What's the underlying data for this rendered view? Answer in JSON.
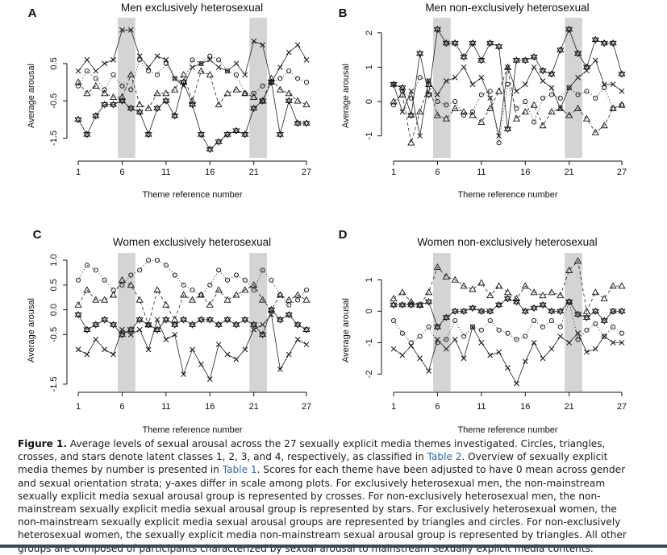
{
  "axis_x_label": "Theme reference number",
  "axis_y_label": "Average arousal",
  "x_ticks": [
    1,
    6,
    11,
    16,
    21,
    27
  ],
  "highlight_themes": [
    6,
    21
  ],
  "chart_data": [
    {
      "panel": "A",
      "type": "scatter",
      "title": "Men exclusively heterosexual",
      "xlabel": "Theme reference number",
      "ylabel": "Average arousal",
      "xlim": [
        1,
        27
      ],
      "ylim": [
        -1.9,
        1.6
      ],
      "yticks": [
        -1.5,
        -0.5,
        0.5
      ],
      "ytick_labels": [
        "-1.5",
        "-0.5",
        "0.5"
      ],
      "x": [
        1,
        2,
        3,
        4,
        5,
        6,
        7,
        8,
        9,
        10,
        11,
        12,
        13,
        14,
        15,
        16,
        17,
        18,
        19,
        20,
        21,
        22,
        23,
        24,
        25,
        26,
        27
      ],
      "series": [
        {
          "marker": "circle",
          "line": "dotted",
          "values": [
            -0.1,
            0.3,
            0.1,
            -0.2,
            0.2,
            -0.1,
            -0.2,
            0.6,
            0.3,
            0.2,
            0.5,
            0.1,
            0.0,
            0.6,
            0.5,
            0.7,
            0.6,
            0.3,
            0.2,
            -0.3,
            -0.3,
            -0.1,
            0.0,
            0.1,
            0.3,
            0.1,
            0.0
          ]
        },
        {
          "marker": "triangle",
          "line": "dashed",
          "values": [
            0.0,
            -0.3,
            -0.1,
            -0.3,
            -0.4,
            -0.4,
            0.2,
            -0.6,
            -0.7,
            -0.3,
            -0.3,
            -0.2,
            0.2,
            -0.5,
            0.3,
            0.2,
            -0.6,
            -0.3,
            -0.2,
            -0.3,
            -0.4,
            -0.5,
            0.1,
            -0.2,
            -0.3,
            -0.5,
            -0.6
          ]
        },
        {
          "marker": "cross",
          "line": "solid",
          "values": [
            0.3,
            0.6,
            0.3,
            0.5,
            0.6,
            1.4,
            1.4,
            0.7,
            0.4,
            0.7,
            0.6,
            0.1,
            -0.1,
            0.4,
            0.5,
            0.6,
            0.4,
            0.3,
            0.5,
            0.2,
            1.1,
            1.0,
            0.0,
            0.4,
            0.8,
            1.0,
            0.6
          ]
        },
        {
          "marker": "star",
          "line": "solid",
          "values": [
            -1.0,
            -1.4,
            -0.9,
            -0.6,
            -0.6,
            -0.5,
            -0.7,
            -0.8,
            -1.4,
            -0.7,
            -0.5,
            -0.9,
            0.0,
            -0.6,
            -1.4,
            -1.8,
            -1.6,
            -1.4,
            -1.3,
            -1.4,
            -0.7,
            -0.5,
            0.0,
            -1.4,
            -0.5,
            -1.1,
            -1.1
          ]
        }
      ]
    },
    {
      "panel": "B",
      "type": "scatter",
      "title": "Men non-exclusively heterosexual",
      "xlabel": "Theme reference number",
      "ylabel": "Average arousal",
      "xlim": [
        1,
        27
      ],
      "ylim": [
        -1.5,
        2.3
      ],
      "yticks": [
        -1,
        0,
        1,
        2
      ],
      "ytick_labels": [
        "-1",
        "0",
        "1",
        "2"
      ],
      "x": [
        1,
        2,
        3,
        4,
        5,
        6,
        7,
        8,
        9,
        10,
        11,
        12,
        13,
        14,
        15,
        16,
        17,
        18,
        19,
        20,
        21,
        22,
        23,
        24,
        25,
        26,
        27
      ],
      "series": [
        {
          "marker": "circle",
          "line": "dotted",
          "values": [
            -0.1,
            0.3,
            0.1,
            0.7,
            0.6,
            0.0,
            -0.1,
            0.0,
            -0.4,
            -0.3,
            0.2,
            0.3,
            -1.2,
            0.5,
            -0.2,
            0.0,
            -0.6,
            0.1,
            0.2,
            0.1,
            0.4,
            0.2,
            0.3,
            0.1,
            0.4,
            -0.2,
            -0.1
          ]
        },
        {
          "marker": "triangle",
          "line": "dashed",
          "values": [
            0.0,
            0.2,
            -1.2,
            -0.3,
            0.5,
            -0.4,
            -0.5,
            -0.2,
            -0.3,
            -0.4,
            -0.6,
            -0.2,
            0.3,
            1.0,
            -0.5,
            -0.3,
            -0.1,
            -0.7,
            -0.3,
            -0.2,
            -0.4,
            -0.2,
            -0.5,
            -0.9,
            -0.7,
            -0.2,
            -0.1
          ]
        },
        {
          "marker": "cross",
          "line": "solid",
          "values": [
            0.5,
            -0.3,
            0.3,
            -1.0,
            0.6,
            0.2,
            0.6,
            0.7,
            1.0,
            0.5,
            0.7,
            0.1,
            -1.0,
            1.0,
            0.3,
            0.5,
            1.0,
            0.6,
            0.4,
            -0.2,
            0.4,
            0.7,
            0.9,
            1.2,
            0.5,
            0.5,
            0.3
          ]
        },
        {
          "marker": "star",
          "line": "solid",
          "values": [
            0.5,
            0.4,
            -0.4,
            1.4,
            0.2,
            2.1,
            1.7,
            1.7,
            1.3,
            1.7,
            1.2,
            1.7,
            1.6,
            -0.8,
            1.2,
            1.2,
            1.3,
            0.9,
            0.8,
            1.5,
            2.1,
            1.4,
            1.0,
            1.8,
            1.7,
            1.7,
            0.8
          ]
        }
      ]
    },
    {
      "panel": "C",
      "type": "scatter",
      "title": "Women exclusively heterosexual",
      "xlabel": "Theme reference number",
      "ylabel": "Average arousal",
      "xlim": [
        1,
        27
      ],
      "ylim": [
        -1.55,
        1.05
      ],
      "yticks": [
        -1.5,
        -0.5,
        0.0,
        0.5,
        1.0
      ],
      "ytick_labels": [
        "-1.5",
        "-0.5",
        "0.0",
        "0.5",
        "1.0"
      ],
      "x": [
        1,
        2,
        3,
        4,
        5,
        6,
        7,
        8,
        9,
        10,
        11,
        12,
        13,
        14,
        15,
        16,
        17,
        18,
        19,
        20,
        21,
        22,
        23,
        24,
        25,
        26,
        27
      ],
      "series": [
        {
          "marker": "circle",
          "line": "dotted",
          "values": [
            0.6,
            0.9,
            0.8,
            0.6,
            0.4,
            0.5,
            0.7,
            0.8,
            1.0,
            1.0,
            0.9,
            0.7,
            0.5,
            0.4,
            0.3,
            0.5,
            0.8,
            0.6,
            0.7,
            0.6,
            0.4,
            0.8,
            0.6,
            0.3,
            0.1,
            0.2,
            0.4
          ]
        },
        {
          "marker": "triangle",
          "line": "dashed",
          "values": [
            0.1,
            0.4,
            0.2,
            0.2,
            0.3,
            0.6,
            0.5,
            0.2,
            -0.3,
            0.4,
            0.1,
            -0.2,
            0.3,
            0.2,
            0.3,
            0.1,
            0.4,
            0.2,
            0.3,
            0.4,
            0.5,
            0.2,
            0.0,
            0.3,
            0.2,
            0.3,
            0.2
          ]
        },
        {
          "marker": "cross",
          "line": "solid",
          "values": [
            -0.8,
            -0.9,
            -0.6,
            -0.8,
            -0.9,
            -0.4,
            -0.5,
            -0.4,
            -0.8,
            -0.2,
            -0.6,
            -0.5,
            -1.3,
            -0.8,
            -1.1,
            -1.4,
            -0.7,
            -0.9,
            -1.0,
            -0.8,
            -0.4,
            -0.3,
            -0.1,
            -1.2,
            -0.9,
            -0.6,
            -0.7
          ]
        },
        {
          "marker": "star",
          "line": "solid",
          "values": [
            -0.1,
            -0.4,
            -0.3,
            -0.2,
            -0.3,
            -0.5,
            -0.4,
            -0.2,
            -0.3,
            -0.4,
            -0.2,
            -0.3,
            -0.2,
            -0.3,
            -0.2,
            -0.2,
            -0.3,
            -0.2,
            -0.3,
            -0.2,
            -0.3,
            -0.5,
            0.0,
            -0.2,
            -0.1,
            -0.3,
            -0.4
          ]
        }
      ]
    },
    {
      "panel": "D",
      "type": "scatter",
      "title": "Women non-exclusively heterosexual",
      "xlabel": "Theme reference number",
      "ylabel": "Average arousal",
      "xlim": [
        1,
        27
      ],
      "ylim": [
        -2.4,
        1.7
      ],
      "yticks": [
        -2,
        -1,
        0,
        1
      ],
      "ytick_labels": [
        "-2",
        "-1",
        "0",
        "1"
      ],
      "x": [
        1,
        2,
        3,
        4,
        5,
        6,
        7,
        8,
        9,
        10,
        11,
        12,
        13,
        14,
        15,
        16,
        17,
        18,
        19,
        20,
        21,
        22,
        23,
        24,
        25,
        26,
        27
      ],
      "series": [
        {
          "marker": "circle",
          "line": "dotted",
          "values": [
            -0.3,
            -0.7,
            -1.0,
            -0.8,
            -0.5,
            -1.0,
            -0.9,
            -0.3,
            -0.8,
            -0.5,
            -0.6,
            -0.3,
            -0.6,
            -0.7,
            -0.9,
            -0.8,
            -0.3,
            -0.5,
            -0.3,
            -0.5,
            0.3,
            -0.9,
            -0.6,
            -0.4,
            -0.8,
            -0.5,
            -0.7
          ]
        },
        {
          "marker": "triangle",
          "line": "dashed",
          "values": [
            0.4,
            0.6,
            0.3,
            0.2,
            0.6,
            1.4,
            1.1,
            1.0,
            0.8,
            0.7,
            0.9,
            0.5,
            0.8,
            0.6,
            0.4,
            0.8,
            0.6,
            0.5,
            0.6,
            0.5,
            1.3,
            1.6,
            0.0,
            0.6,
            0.4,
            0.8,
            0.8
          ]
        },
        {
          "marker": "cross",
          "line": "solid",
          "values": [
            -1.2,
            -1.4,
            -1.1,
            -1.5,
            -1.9,
            -0.9,
            -1.2,
            -0.9,
            -1.5,
            -0.5,
            -1.0,
            -1.4,
            -1.3,
            -1.8,
            -2.3,
            -1.6,
            -1.0,
            -1.5,
            -1.2,
            -0.8,
            -1.0,
            -0.7,
            -1.3,
            -1.2,
            -0.8,
            -1.0,
            -1.0
          ]
        },
        {
          "marker": "star",
          "line": "solid",
          "values": [
            0.2,
            0.2,
            0.2,
            0.2,
            0.3,
            -0.5,
            -0.2,
            0.0,
            0.0,
            0.1,
            0.0,
            0.0,
            0.2,
            0.4,
            0.3,
            0.0,
            0.1,
            0.2,
            0.0,
            0.0,
            0.3,
            -0.1,
            -0.2,
            0.0,
            -0.3,
            0.0,
            0.0
          ]
        }
      ]
    }
  ],
  "caption": {
    "label": "Figure 1.",
    "p1": " Average levels of sexual arousal across the 27 sexually explicit media themes investigated. Circles, triangles, crosses, and stars denote latent classes 1, 2, 3, and 4, respectively, as classified in ",
    "link1": "Table 2",
    "p2": ". Overview of sexually explicit media themes by number is presented in ",
    "link2": "Table 1",
    "p3": ". Scores for each theme have been adjusted to have 0 mean across gender and sexual orientation strata; y-axes differ in scale among plots. For exclusively heterosexual men, the non-mainstream sexually explicit media sexual arousal group is represented by crosses. For non-exclusively heterosexual men, the non-mainstream sexually explicit media sexual arousal group is represented by stars. For exclusively heterosexual women, the non-mainstream sexually explicit media sexual arousal groups are represented by triangles and circles. For non-exclusively heterosexual women, the sexually explicit media non-mainstream sexual arousal group is represented by triangles. All other groups are composed of participants characterized by sexual arousal to mainstream sexually explicit media contents."
  }
}
